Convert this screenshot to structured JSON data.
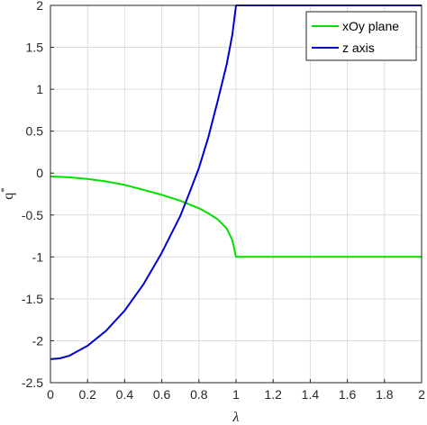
{
  "chart_data": {
    "type": "line",
    "title": "",
    "xlabel": "λ",
    "ylabel_base": "q",
    "ylabel_sup": "*",
    "xlim": [
      0,
      2
    ],
    "ylim": [
      -2.5,
      2
    ],
    "x_ticks": [
      0,
      0.2,
      0.4,
      0.6,
      0.8,
      1,
      1.2,
      1.4,
      1.6,
      1.8,
      2
    ],
    "x_tick_labels": [
      "0",
      "0.2",
      "0.4",
      "0.6",
      "0.8",
      "1",
      "1.2",
      "1.4",
      "1.6",
      "1.8",
      "2"
    ],
    "y_ticks": [
      2,
      1.5,
      1,
      0.5,
      0,
      -0.5,
      -1,
      -1.5,
      -2,
      -2.5
    ],
    "y_tick_labels": [
      "2",
      "1.5",
      "1",
      "0.5",
      "0",
      "-0.5",
      "-1",
      "-1.5",
      "-2",
      "-2.5"
    ],
    "grid": true,
    "legend_position": "top-right",
    "series": [
      {
        "name": "xOy plane",
        "color": "#00e000",
        "x": [
          0,
          0.1,
          0.2,
          0.3,
          0.4,
          0.5,
          0.6,
          0.7,
          0.8,
          0.85,
          0.9,
          0.95,
          0.98,
          1.0,
          1.2,
          1.4,
          1.6,
          1.8,
          2.0
        ],
        "y": [
          -0.04,
          -0.05,
          -0.07,
          -0.1,
          -0.14,
          -0.2,
          -0.26,
          -0.33,
          -0.42,
          -0.48,
          -0.55,
          -0.66,
          -0.8,
          -1.0,
          -1.0,
          -1.0,
          -1.0,
          -1.0,
          -1.0
        ]
      },
      {
        "name": "z axis",
        "color": "#0000cc",
        "x": [
          0,
          0.05,
          0.1,
          0.2,
          0.3,
          0.4,
          0.5,
          0.6,
          0.7,
          0.75,
          0.8,
          0.85,
          0.9,
          0.95,
          0.98,
          1.0,
          1.2,
          1.4,
          1.6,
          1.8,
          2.0
        ],
        "y": [
          -2.22,
          -2.21,
          -2.18,
          -2.06,
          -1.88,
          -1.64,
          -1.33,
          -0.95,
          -0.51,
          -0.23,
          0.06,
          0.42,
          0.85,
          1.3,
          1.65,
          2.0,
          2.0,
          2.0,
          2.0,
          2.0,
          2.0
        ]
      }
    ]
  }
}
